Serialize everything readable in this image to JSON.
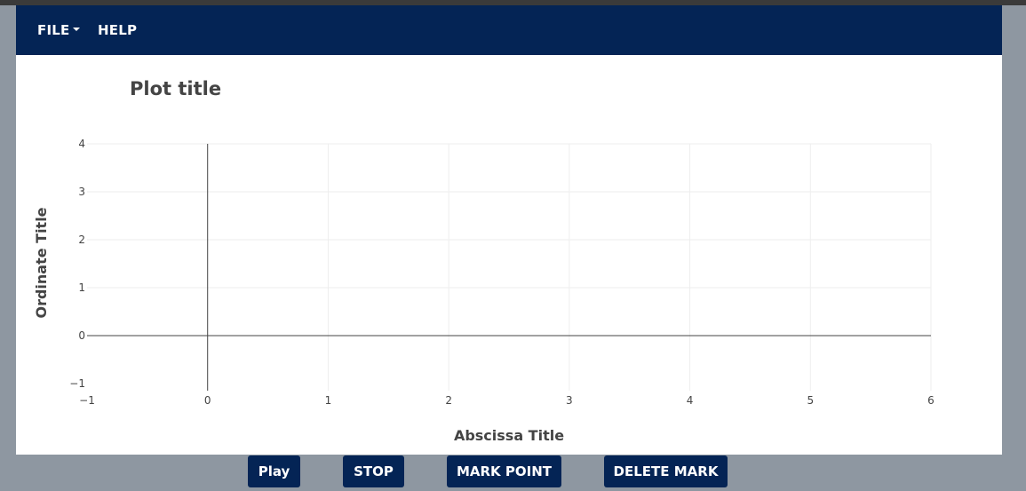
{
  "menu": {
    "file_label": "FILE",
    "help_label": "HELP"
  },
  "controls": {
    "play_label": "Play",
    "stop_label": "STOP",
    "mark_point_label": "MARK POINT",
    "delete_mark_label": "DELETE MARK"
  },
  "colors": {
    "navbar": "#042455",
    "page_background": "#8e97a1",
    "panel": "#ffffff"
  },
  "chart_data": {
    "type": "line",
    "title": "Plot title",
    "xlabel": "Abscissa Title",
    "ylabel": "Ordinate Title",
    "xlim": [
      -1,
      6
    ],
    "ylim": [
      -1,
      4
    ],
    "x_ticks": [
      -1,
      0,
      1,
      2,
      3,
      4,
      5,
      6
    ],
    "y_ticks": [
      -1,
      0,
      1,
      2,
      3,
      4
    ],
    "x_tick_labels": [
      "−1",
      "0",
      "1",
      "2",
      "3",
      "4",
      "5",
      "6"
    ],
    "y_tick_labels": [
      "−1",
      "0",
      "1",
      "2",
      "3",
      "4"
    ],
    "grid": true,
    "series": []
  }
}
